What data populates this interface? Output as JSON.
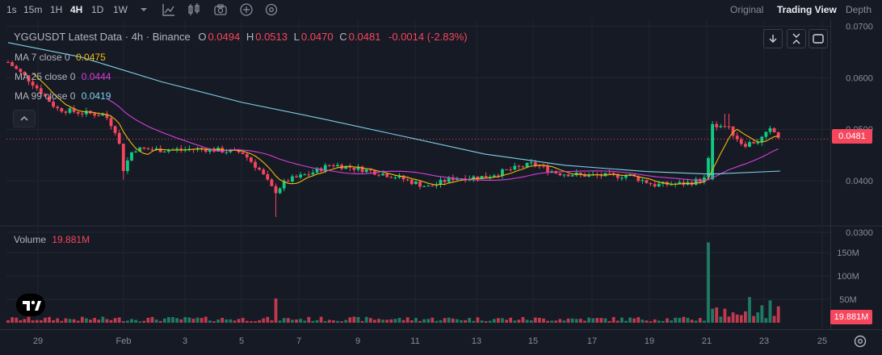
{
  "toolbar": {
    "timeframes": [
      {
        "label": "1s",
        "active": false
      },
      {
        "label": "15m",
        "active": false
      },
      {
        "label": "1H",
        "active": false
      },
      {
        "label": "4H",
        "active": true
      },
      {
        "label": "1D",
        "active": false
      },
      {
        "label": "1W",
        "active": false
      }
    ],
    "icons": [
      "dropdown-icon",
      "indicators-icon",
      "candle-style-icon",
      "screenshot-icon",
      "add-icon",
      "settings-icon"
    ],
    "views": [
      {
        "label": "Original",
        "active": false
      },
      {
        "label": "Trading View",
        "active": true
      },
      {
        "label": "Depth",
        "active": false
      }
    ]
  },
  "legend": {
    "symbol": "YGGUSDT Latest Data · 4h · Binance",
    "o_label": "O",
    "o": "0.0494",
    "h_label": "H",
    "h": "0.0513",
    "l_label": "L",
    "l": "0.0470",
    "c_label": "C",
    "c": "0.0481",
    "change": "-0.0014 (-2.83%)"
  },
  "ma": [
    {
      "label": "MA 7 close 0",
      "value": "0.0475",
      "color": "#f0b90b"
    },
    {
      "label": "MA 25 close 0",
      "value": "0.0444",
      "color": "#d63eda"
    },
    {
      "label": "MA 99 close 0",
      "value": "0.0419",
      "color": "#7fd0e8"
    }
  ],
  "colors": {
    "up": "#0ecb81",
    "up_bar": "#1e7a63",
    "down": "#f6465d",
    "down_bar": "#c1394c",
    "bg": "#161a25"
  },
  "price_axis": [
    "0.0700",
    "0.0600",
    "0.0500",
    "0.0400",
    "0.0300"
  ],
  "volume_axis": [
    "150M",
    "100M",
    "50M"
  ],
  "current_price_tag": "0.0481",
  "volume_legend": {
    "label": "Volume",
    "value": "19.881M"
  },
  "volume_tag": "19.881M",
  "time_axis": [
    "29",
    "Feb",
    "3",
    "5",
    "7",
    "9",
    "11",
    "13",
    "15",
    "17",
    "19",
    "21",
    "23",
    "25"
  ],
  "chart_data": {
    "type": "candlestick",
    "interval": "4h",
    "ylim": [
      0.03,
      0.071
    ],
    "volume_unit": "M",
    "checkpoints": [
      {
        "date": "Jan 28",
        "close": 0.063
      },
      {
        "date": "Jan 29",
        "close": 0.0555
      },
      {
        "date": "Jan 31",
        "close": 0.0528
      },
      {
        "date": "Feb 1",
        "close": 0.046
      },
      {
        "date": "Feb 3",
        "close": 0.0462
      },
      {
        "date": "Feb 5",
        "close": 0.0455
      },
      {
        "date": "Feb 6",
        "close": 0.0378,
        "low": 0.033,
        "volume": 52
      },
      {
        "date": "Feb 8",
        "close": 0.043
      },
      {
        "date": "Feb 11",
        "close": 0.0385
      },
      {
        "date": "Feb 15",
        "close": 0.0433
      },
      {
        "date": "Feb 17",
        "close": 0.041
      },
      {
        "date": "Feb 20",
        "close": 0.039
      },
      {
        "date": "Feb 21",
        "close": 0.051,
        "high": 0.0525,
        "volume": 172
      },
      {
        "date": "Feb 23",
        "close": 0.047
      },
      {
        "date": "Feb 23",
        "close": 0.0481,
        "volume": 19.881
      }
    ],
    "ma7_last": 0.0475,
    "ma25_last": 0.0444,
    "ma99_last": 0.0419
  }
}
